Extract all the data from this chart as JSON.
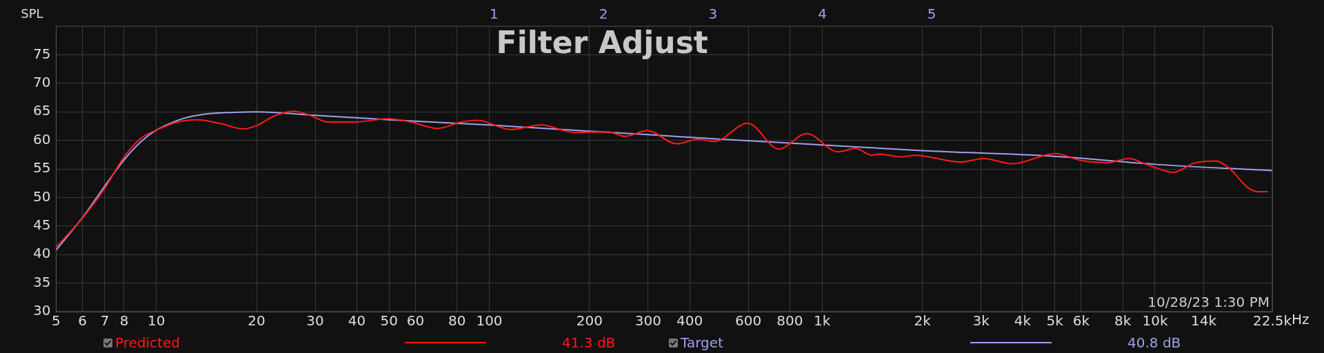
{
  "chart_data": {
    "type": "line",
    "title": "Filter Adjust",
    "ylabel": "SPL",
    "log": "x",
    "grid": true,
    "legend": "bottom",
    "marker": "none",
    "line_style": "solid",
    "xlim": [
      5,
      22500
    ],
    "ylim": [
      30,
      80
    ],
    "xticks": [
      5,
      6,
      7,
      8,
      10,
      20,
      30,
      40,
      50,
      60,
      80,
      100,
      200,
      300,
      400,
      600,
      800,
      {
        "value": 1000,
        "label": "1k"
      },
      {
        "value": 2000,
        "label": "2k"
      },
      {
        "value": 3000,
        "label": "3k"
      },
      {
        "value": 4000,
        "label": "4k"
      },
      {
        "value": 5000,
        "label": "5k"
      },
      {
        "value": 6000,
        "label": "6k"
      },
      {
        "value": 8000,
        "label": "8k"
      },
      {
        "value": 10000,
        "label": "10k"
      },
      {
        "value": 14000,
        "label": "14k"
      },
      {
        "value": 22500,
        "label": "22.5k"
      }
    ],
    "xlabel": "Hz",
    "yticks": [
      30,
      35,
      40,
      45,
      50,
      55,
      60,
      65,
      70,
      75
    ],
    "series": [
      {
        "name": "Predicted",
        "color": "#ff1a1a",
        "x": [
          5,
          6,
          7,
          8,
          9,
          10,
          11.4,
          13.2,
          15.7,
          18.2,
          20,
          22.7,
          25.8,
          28.6,
          32.8,
          39.4,
          49.6,
          58.3,
          70,
          82.4,
          92.5,
          108,
          116,
          143,
          180,
          227,
          256,
          298,
          366,
          424,
          474,
          598,
          741,
          900,
          1114,
          1260,
          1406,
          1486,
          1729,
          1893,
          2612,
          3055,
          3724,
          5023,
          5957,
          7175,
          8344,
          9524,
          11352,
          13088,
          15210,
          16670,
          19020,
          20510,
          21820
        ],
        "values": [
          41.3,
          46.4,
          51.6,
          57.1,
          60.4,
          61.8,
          63.1,
          63.6,
          62.9,
          62.0,
          62.6,
          64.3,
          65.1,
          64.5,
          63.2,
          63.2,
          63.8,
          63.2,
          62.1,
          63.2,
          63.5,
          62.3,
          61.9,
          62.7,
          61.4,
          61.5,
          60.7,
          61.7,
          59.4,
          60.2,
          59.8,
          63.0,
          58.5,
          61.2,
          58.0,
          58.6,
          57.4,
          57.6,
          57.1,
          57.4,
          56.2,
          56.8,
          55.9,
          57.7,
          56.5,
          56.1,
          56.8,
          55.7,
          54.4,
          56.0,
          56.4,
          55.2,
          51.7,
          51.0,
          51.0
        ]
      },
      {
        "name": "Target",
        "color": "#a0a0f0",
        "x": [
          5,
          6,
          7,
          8,
          9,
          10,
          12,
          14,
          17,
          20,
          30,
          50,
          100,
          200,
          300,
          500,
          1000,
          2000,
          5000,
          10000,
          22500
        ],
        "values": [
          40.8,
          46.5,
          52.0,
          56.6,
          59.8,
          61.8,
          63.8,
          64.6,
          64.9,
          65.0,
          64.4,
          63.6,
          62.7,
          61.6,
          61.0,
          60.2,
          59.2,
          58.2,
          57.2,
          55.8,
          54.7
        ]
      }
    ],
    "annotations": [
      "1",
      "2",
      "3",
      "4",
      "5",
      "10/28/23 1:30 PM",
      "41.3 dB",
      "40.8 dB"
    ]
  }
}
